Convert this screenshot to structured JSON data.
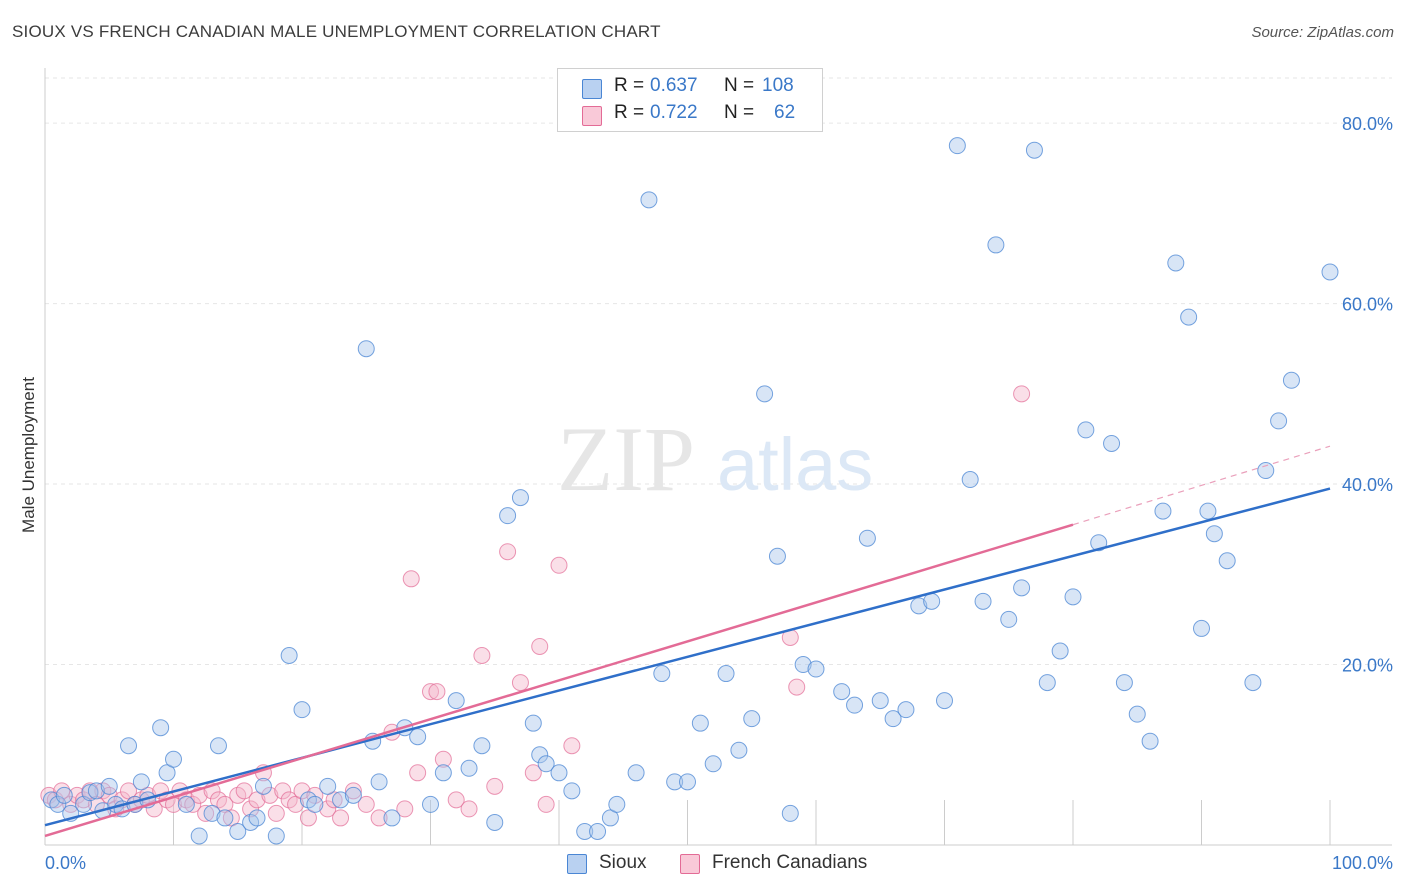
{
  "title": "SIOUX VS FRENCH CANADIAN MALE UNEMPLOYMENT CORRELATION CHART",
  "source": "Source: ZipAtlas.com",
  "watermark": {
    "zip": "ZIP",
    "atlas": "atlas"
  },
  "legend": [
    {
      "r_label": "R =",
      "r_value": "0.637",
      "n_label": "N =",
      "n_value": "108"
    },
    {
      "r_label": "R =",
      "r_value": "0.722",
      "n_label": "N =",
      "n_value": " 62"
    }
  ],
  "bottom_legend": [
    "Sioux",
    "French Canadians"
  ],
  "colors": {
    "sioux": "#4a86d4",
    "sioux_fill": "#a9c6ec",
    "french": "#e36b96",
    "french_fill": "#f5b8cb",
    "grid": "#e6e6e6",
    "tick": "#3a78c8"
  },
  "chart_data": {
    "type": "scatter",
    "title": "SIOUX VS FRENCH CANADIAN MALE UNEMPLOYMENT CORRELATION CHART",
    "xlabel": "",
    "ylabel": "Male Unemployment",
    "xlim": [
      0,
      100
    ],
    "ylim": [
      0,
      85
    ],
    "x_tick_labels": [
      "0.0%",
      "100.0%"
    ],
    "y_tick_labels": [
      "20.0%",
      "40.0%",
      "60.0%",
      "80.0%"
    ],
    "y_ticks": [
      20,
      40,
      60,
      80
    ],
    "grid": true,
    "legend_position": "top-center",
    "series": [
      {
        "name": "Sioux",
        "r": 0.637,
        "n": 108,
        "trend": [
          [
            0,
            2.2
          ],
          [
            100,
            39.5
          ]
        ],
        "points": [
          [
            0.5,
            5
          ],
          [
            1,
            4.5
          ],
          [
            1.5,
            5.5
          ],
          [
            2,
            3.5
          ],
          [
            3,
            4.5
          ],
          [
            3.5,
            5.8
          ],
          [
            4,
            6
          ],
          [
            4.5,
            3.8
          ],
          [
            5,
            6.5
          ],
          [
            5.5,
            4.5
          ],
          [
            6,
            4
          ],
          [
            6.5,
            11
          ],
          [
            7,
            4.5
          ],
          [
            7.5,
            7
          ],
          [
            8,
            5
          ],
          [
            9,
            13
          ],
          [
            9.5,
            8
          ],
          [
            10,
            9.5
          ],
          [
            11,
            4.5
          ],
          [
            12,
            1
          ],
          [
            13,
            3.5
          ],
          [
            13.5,
            11
          ],
          [
            14,
            3
          ],
          [
            15,
            1.5
          ],
          [
            16,
            2.5
          ],
          [
            16.5,
            3
          ],
          [
            17,
            6.5
          ],
          [
            18,
            1
          ],
          [
            19,
            21
          ],
          [
            20,
            15
          ],
          [
            20.5,
            5
          ],
          [
            21,
            4.5
          ],
          [
            22,
            6.5
          ],
          [
            23,
            5
          ],
          [
            24,
            5.5
          ],
          [
            25,
            55
          ],
          [
            25.5,
            11.5
          ],
          [
            26,
            7
          ],
          [
            27,
            3
          ],
          [
            28,
            13
          ],
          [
            29,
            12
          ],
          [
            30,
            4.5
          ],
          [
            31,
            8
          ],
          [
            32,
            16
          ],
          [
            33,
            8.5
          ],
          [
            34,
            11
          ],
          [
            35,
            2.5
          ],
          [
            36,
            36.5
          ],
          [
            37,
            38.5
          ],
          [
            38,
            13.5
          ],
          [
            38.5,
            10
          ],
          [
            39,
            9
          ],
          [
            40,
            8
          ],
          [
            41,
            6
          ],
          [
            42,
            1.5
          ],
          [
            43,
            1.5
          ],
          [
            44,
            3
          ],
          [
            44.5,
            4.5
          ],
          [
            46,
            8
          ],
          [
            47,
            71.5
          ],
          [
            48,
            19
          ],
          [
            49,
            7
          ],
          [
            50,
            7
          ],
          [
            51,
            13.5
          ],
          [
            52,
            9
          ],
          [
            53,
            19
          ],
          [
            54,
            10.5
          ],
          [
            55,
            14
          ],
          [
            56,
            50
          ],
          [
            57,
            32
          ],
          [
            58,
            3.5
          ],
          [
            59,
            20
          ],
          [
            60,
            19.5
          ],
          [
            62,
            17
          ],
          [
            63,
            15.5
          ],
          [
            64,
            34
          ],
          [
            65,
            16
          ],
          [
            66,
            14
          ],
          [
            67,
            15
          ],
          [
            68,
            26.5
          ],
          [
            69,
            27
          ],
          [
            70,
            16
          ],
          [
            71,
            77.5
          ],
          [
            72,
            40.5
          ],
          [
            73,
            27
          ],
          [
            74,
            66.5
          ],
          [
            75,
            25
          ],
          [
            76,
            28.5
          ],
          [
            77,
            77
          ],
          [
            78,
            18
          ],
          [
            79,
            21.5
          ],
          [
            80,
            27.5
          ],
          [
            81,
            46
          ],
          [
            82,
            33.5
          ],
          [
            83,
            44.5
          ],
          [
            84,
            18
          ],
          [
            85,
            14.5
          ],
          [
            86,
            11.5
          ],
          [
            87,
            37
          ],
          [
            88,
            64.5
          ],
          [
            89,
            58.5
          ],
          [
            90,
            24
          ],
          [
            90.5,
            37
          ],
          [
            91,
            34.5
          ],
          [
            92,
            31.5
          ],
          [
            94,
            18
          ],
          [
            95,
            41.5
          ],
          [
            96,
            47
          ],
          [
            97,
            51.5
          ],
          [
            100,
            63.5
          ]
        ]
      },
      {
        "name": "French Canadians",
        "r": 0.722,
        "n": 62,
        "trend": [
          [
            0,
            1.0
          ],
          [
            80,
            35.5
          ]
        ],
        "trend_dashed": [
          [
            80,
            35.5
          ],
          [
            100,
            44.2
          ]
        ],
        "points": [
          [
            0.3,
            5.5
          ],
          [
            0.8,
            5
          ],
          [
            1.3,
            6
          ],
          [
            2,
            4.5
          ],
          [
            2.5,
            5.5
          ],
          [
            3,
            5
          ],
          [
            3.5,
            6
          ],
          [
            4,
            4.5
          ],
          [
            4.5,
            6
          ],
          [
            5,
            5.5
          ],
          [
            5.5,
            4
          ],
          [
            6,
            5
          ],
          [
            6.5,
            6
          ],
          [
            7,
            4.5
          ],
          [
            7.5,
            5
          ],
          [
            8,
            5.5
          ],
          [
            8.5,
            4
          ],
          [
            9,
            6
          ],
          [
            9.5,
            5
          ],
          [
            10,
            4.5
          ],
          [
            10.5,
            6
          ],
          [
            11,
            5
          ],
          [
            11.5,
            4.5
          ],
          [
            12,
            5.5
          ],
          [
            12.5,
            3.5
          ],
          [
            13,
            6
          ],
          [
            13.5,
            5
          ],
          [
            14,
            4.5
          ],
          [
            14.5,
            3
          ],
          [
            15,
            5.5
          ],
          [
            15.5,
            6
          ],
          [
            16,
            4
          ],
          [
            16.5,
            5
          ],
          [
            17,
            8
          ],
          [
            17.5,
            5.5
          ],
          [
            18,
            3.5
          ],
          [
            18.5,
            6
          ],
          [
            19,
            5
          ],
          [
            19.5,
            4.5
          ],
          [
            20,
            6
          ],
          [
            20.5,
            3
          ],
          [
            21,
            5.5
          ],
          [
            22,
            4
          ],
          [
            22.5,
            5
          ],
          [
            23,
            3
          ],
          [
            24,
            6
          ],
          [
            25,
            4.5
          ],
          [
            26,
            3
          ],
          [
            27,
            12.5
          ],
          [
            28,
            4
          ],
          [
            28.5,
            29.5
          ],
          [
            29,
            8
          ],
          [
            30,
            17
          ],
          [
            30.5,
            17
          ],
          [
            31,
            9.5
          ],
          [
            32,
            5
          ],
          [
            33,
            4
          ],
          [
            34,
            21
          ],
          [
            35,
            6.5
          ],
          [
            36,
            32.5
          ],
          [
            37,
            18
          ],
          [
            38,
            8
          ],
          [
            38.5,
            22
          ],
          [
            39,
            4.5
          ],
          [
            40,
            31
          ],
          [
            41,
            11
          ],
          [
            58,
            23
          ],
          [
            58.5,
            17.5
          ],
          [
            76,
            50
          ]
        ]
      }
    ]
  }
}
